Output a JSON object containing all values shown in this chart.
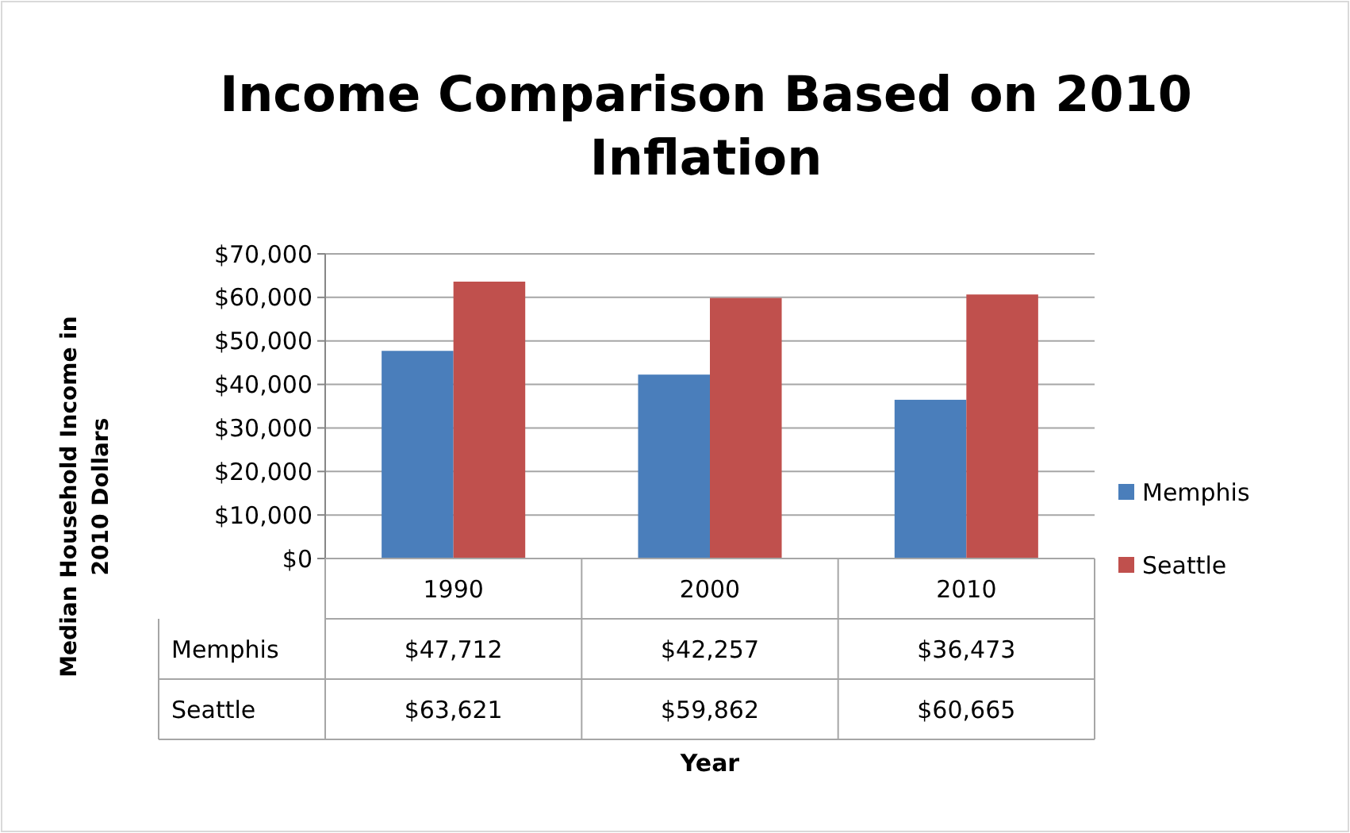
{
  "chart_data": {
    "type": "bar",
    "title": "Income Comparison Based on 2010 Inflation",
    "annotations": [
      "Year"
    ],
    "ylabel": "Median Household Income in 2010 Dollars",
    "categories": [
      "1990",
      "2000",
      "2010"
    ],
    "series": [
      {
        "name": "Memphis",
        "color": "#4a7ebb",
        "values": [
          47712,
          42257,
          36473
        ],
        "value_labels": [
          "$47,712",
          "$42,257",
          "$36,473"
        ]
      },
      {
        "name": "Seattle",
        "color": "#c0504d",
        "values": [
          63621,
          59862,
          60665
        ],
        "value_labels": [
          "$63,621",
          "$59,862",
          "$60,665"
        ]
      }
    ],
    "ylim": [
      0,
      70000
    ],
    "yticks": [
      {
        "value": 0,
        "label": "$0"
      },
      {
        "value": 10000,
        "label": "$10,000"
      },
      {
        "value": 20000,
        "label": "$20,000"
      },
      {
        "value": 30000,
        "label": "$30,000"
      },
      {
        "value": 40000,
        "label": "$40,000"
      },
      {
        "value": 50000,
        "label": "$50,000"
      },
      {
        "value": 60000,
        "label": "$60,000"
      },
      {
        "value": 70000,
        "label": "$70,000"
      }
    ],
    "grid": "y",
    "legend": "right"
  }
}
